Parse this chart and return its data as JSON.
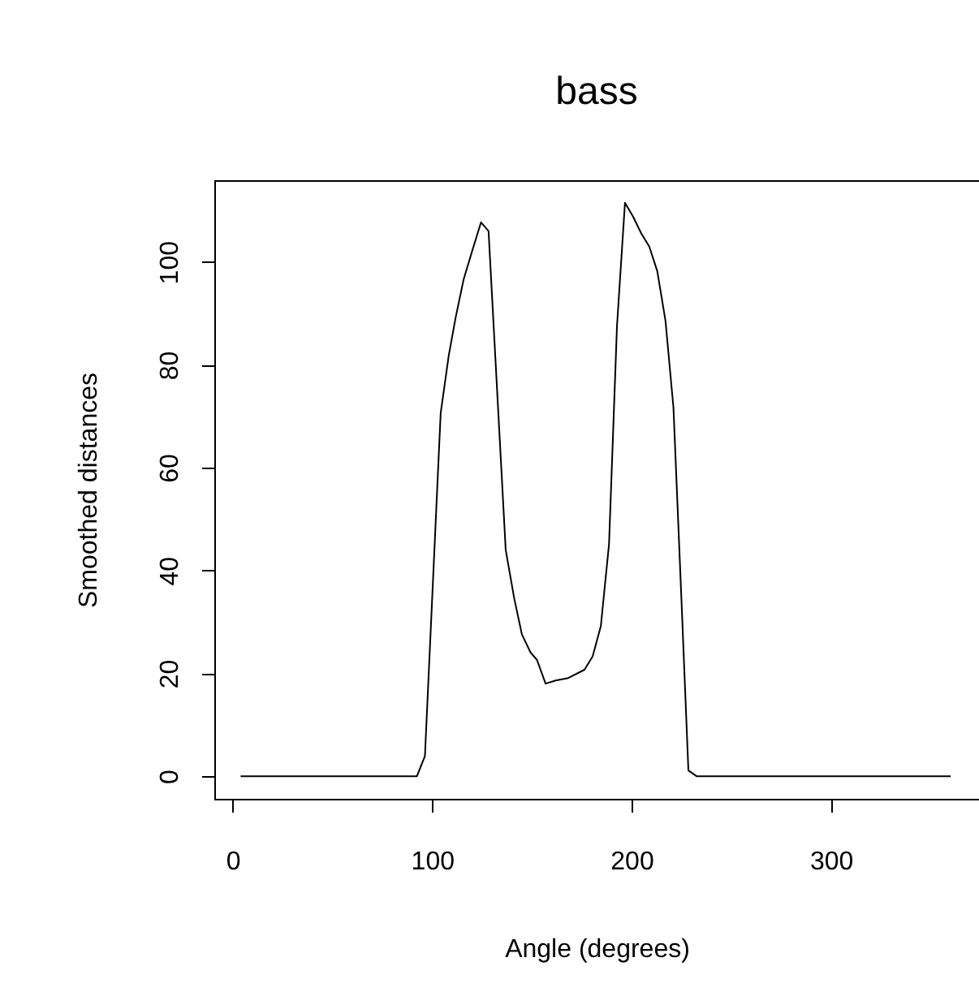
{
  "chart_data": {
    "type": "line",
    "title": "bass",
    "xlabel": "Angle (degrees)",
    "ylabel": "Smoothed distances",
    "series": [
      {
        "color": "#000000",
        "x": [
          4,
          92.4,
          96.4,
          104.3,
          108.3,
          111.8,
          115.8,
          119.9,
          124.5,
          128.3,
          136.9,
          141.2,
          145,
          149.3,
          152.6,
          156.9,
          162,
          168.3,
          176.4,
          180.5,
          184.6,
          188.7,
          192.7,
          196.7,
          200.8,
          204.8,
          208.9,
          212.9,
          217,
          221,
          225,
          228.5,
          232.6,
          360
        ],
        "values": [
          0,
          0,
          3.9,
          70.6,
          81.7,
          89.2,
          96.6,
          101.9,
          107.7,
          106,
          44,
          34.5,
          27.6,
          24.1,
          22.6,
          18,
          18.6,
          19.1,
          20.7,
          23.3,
          29.2,
          45.1,
          87.6,
          111.5,
          108.8,
          105.6,
          103,
          98.2,
          88.6,
          71.7,
          34.5,
          1.1,
          0,
          0
        ]
      }
    ],
    "xlim": [
      -9.2,
      374.2
    ],
    "ylim": [
      -4.4,
      115.9
    ],
    "xticks": [
      0,
      100,
      200,
      300
    ],
    "yticks": [
      0,
      20,
      40,
      60,
      80,
      100
    ],
    "grid": false,
    "marker": "none",
    "line_style": "solid"
  }
}
